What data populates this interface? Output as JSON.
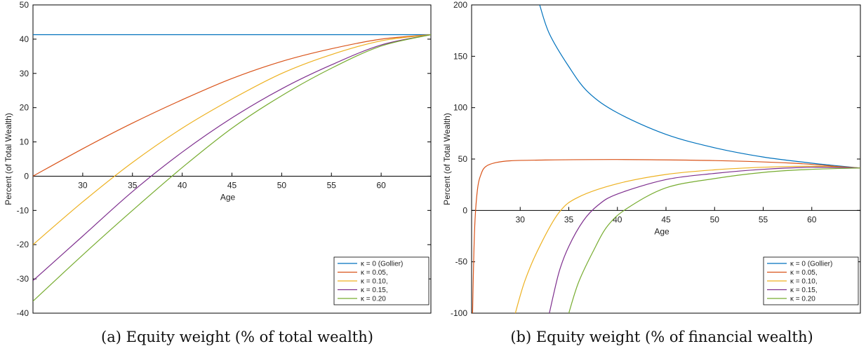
{
  "captions": [
    "(a) Equity weight (% of total wealth)",
    "(b) Equity weight (% of financial wealth)"
  ],
  "colors": [
    "#0072BD",
    "#D95319",
    "#EDB120",
    "#7E2F8E",
    "#77AC30"
  ],
  "chart_data": [
    {
      "type": "line",
      "xlabel": "Age",
      "ylabel": "Percent (of Total Wealth)",
      "xlim": [
        25,
        65
      ],
      "ylim": [
        -40,
        50
      ],
      "xticks": [
        30,
        35,
        40,
        45,
        50,
        55,
        60
      ],
      "yticks": [
        -40,
        -30,
        -20,
        -10,
        0,
        10,
        20,
        30,
        40,
        50
      ],
      "legend": "bottom-right",
      "series": [
        {
          "name": "κ = 0 (Gollier)",
          "x": [
            25,
            35,
            45,
            55,
            65
          ],
          "y": [
            41.3,
            41.3,
            41.3,
            41.3,
            41.3
          ]
        },
        {
          "name": "κ = 0.05,",
          "x": [
            25,
            30,
            35,
            40,
            45,
            50,
            55,
            60,
            65
          ],
          "y": [
            0,
            8,
            15.5,
            22.3,
            28.5,
            33.5,
            37.2,
            40,
            41.3
          ]
        },
        {
          "name": "κ = 0.10,",
          "x": [
            25,
            30,
            35,
            40,
            45,
            50,
            55,
            60,
            65
          ],
          "y": [
            -20,
            -7.5,
            4,
            14,
            22.5,
            30,
            35.5,
            39.5,
            41.3
          ]
        },
        {
          "name": "κ = 0.15,",
          "x": [
            25,
            30,
            35,
            40,
            45,
            50,
            55,
            60,
            65
          ],
          "y": [
            -30.5,
            -17.5,
            -4.5,
            7,
            17,
            25.5,
            32.5,
            38.3,
            41.3
          ]
        },
        {
          "name": "κ = 0.20",
          "x": [
            25,
            30,
            35,
            40,
            45,
            50,
            55,
            60,
            65
          ],
          "y": [
            -36.5,
            -23,
            -10,
            2.5,
            14,
            23.5,
            31.5,
            38,
            41.3
          ]
        }
      ]
    },
    {
      "type": "line",
      "xlabel": "Age",
      "ylabel": "Percent (of Total Wealth)",
      "xlim": [
        25,
        65
      ],
      "ylim": [
        -100,
        200
      ],
      "xticks": [
        30,
        35,
        40,
        45,
        50,
        55,
        60
      ],
      "yticks": [
        -100,
        -50,
        0,
        50,
        100,
        150,
        200
      ],
      "legend": "bottom-right",
      "series": [
        {
          "name": "κ = 0 (Gollier)",
          "x": [
            32,
            33,
            35,
            37,
            40,
            45,
            50,
            55,
            60,
            62,
            65
          ],
          "y": [
            200,
            172,
            140,
            115,
            95,
            74,
            61,
            52,
            46,
            44,
            41.3
          ]
        },
        {
          "name": "κ = 0.05,",
          "x": [
            25.1,
            25.3,
            25.6,
            26,
            26.5,
            27.5,
            29,
            32,
            40,
            50,
            58,
            63,
            65
          ],
          "y": [
            -100,
            -20,
            20,
            36,
            43,
            46.5,
            48.3,
            49,
            49.5,
            48.5,
            46,
            42.5,
            41.3
          ]
        },
        {
          "name": "κ = 0.10,",
          "x": [
            29.5,
            30.5,
            32,
            34,
            36,
            40,
            45,
            50,
            55,
            60,
            65
          ],
          "y": [
            -100,
            -68,
            -35,
            -2,
            13,
            26,
            35,
            39.5,
            42,
            43,
            41.3
          ]
        },
        {
          "name": "κ = 0.15,",
          "x": [
            33,
            34,
            35,
            36.5,
            38,
            40,
            45,
            50,
            55,
            60,
            65
          ],
          "y": [
            -100,
            -60,
            -35,
            -10,
            5,
            16,
            30,
            36,
            40,
            42,
            41.3
          ]
        },
        {
          "name": "κ = 0.20",
          "x": [
            35,
            36,
            37.5,
            39,
            41,
            45,
            50,
            55,
            60,
            65
          ],
          "y": [
            -100,
            -70,
            -40,
            -15,
            2,
            22,
            31,
            37,
            40,
            41.3
          ]
        }
      ]
    }
  ]
}
